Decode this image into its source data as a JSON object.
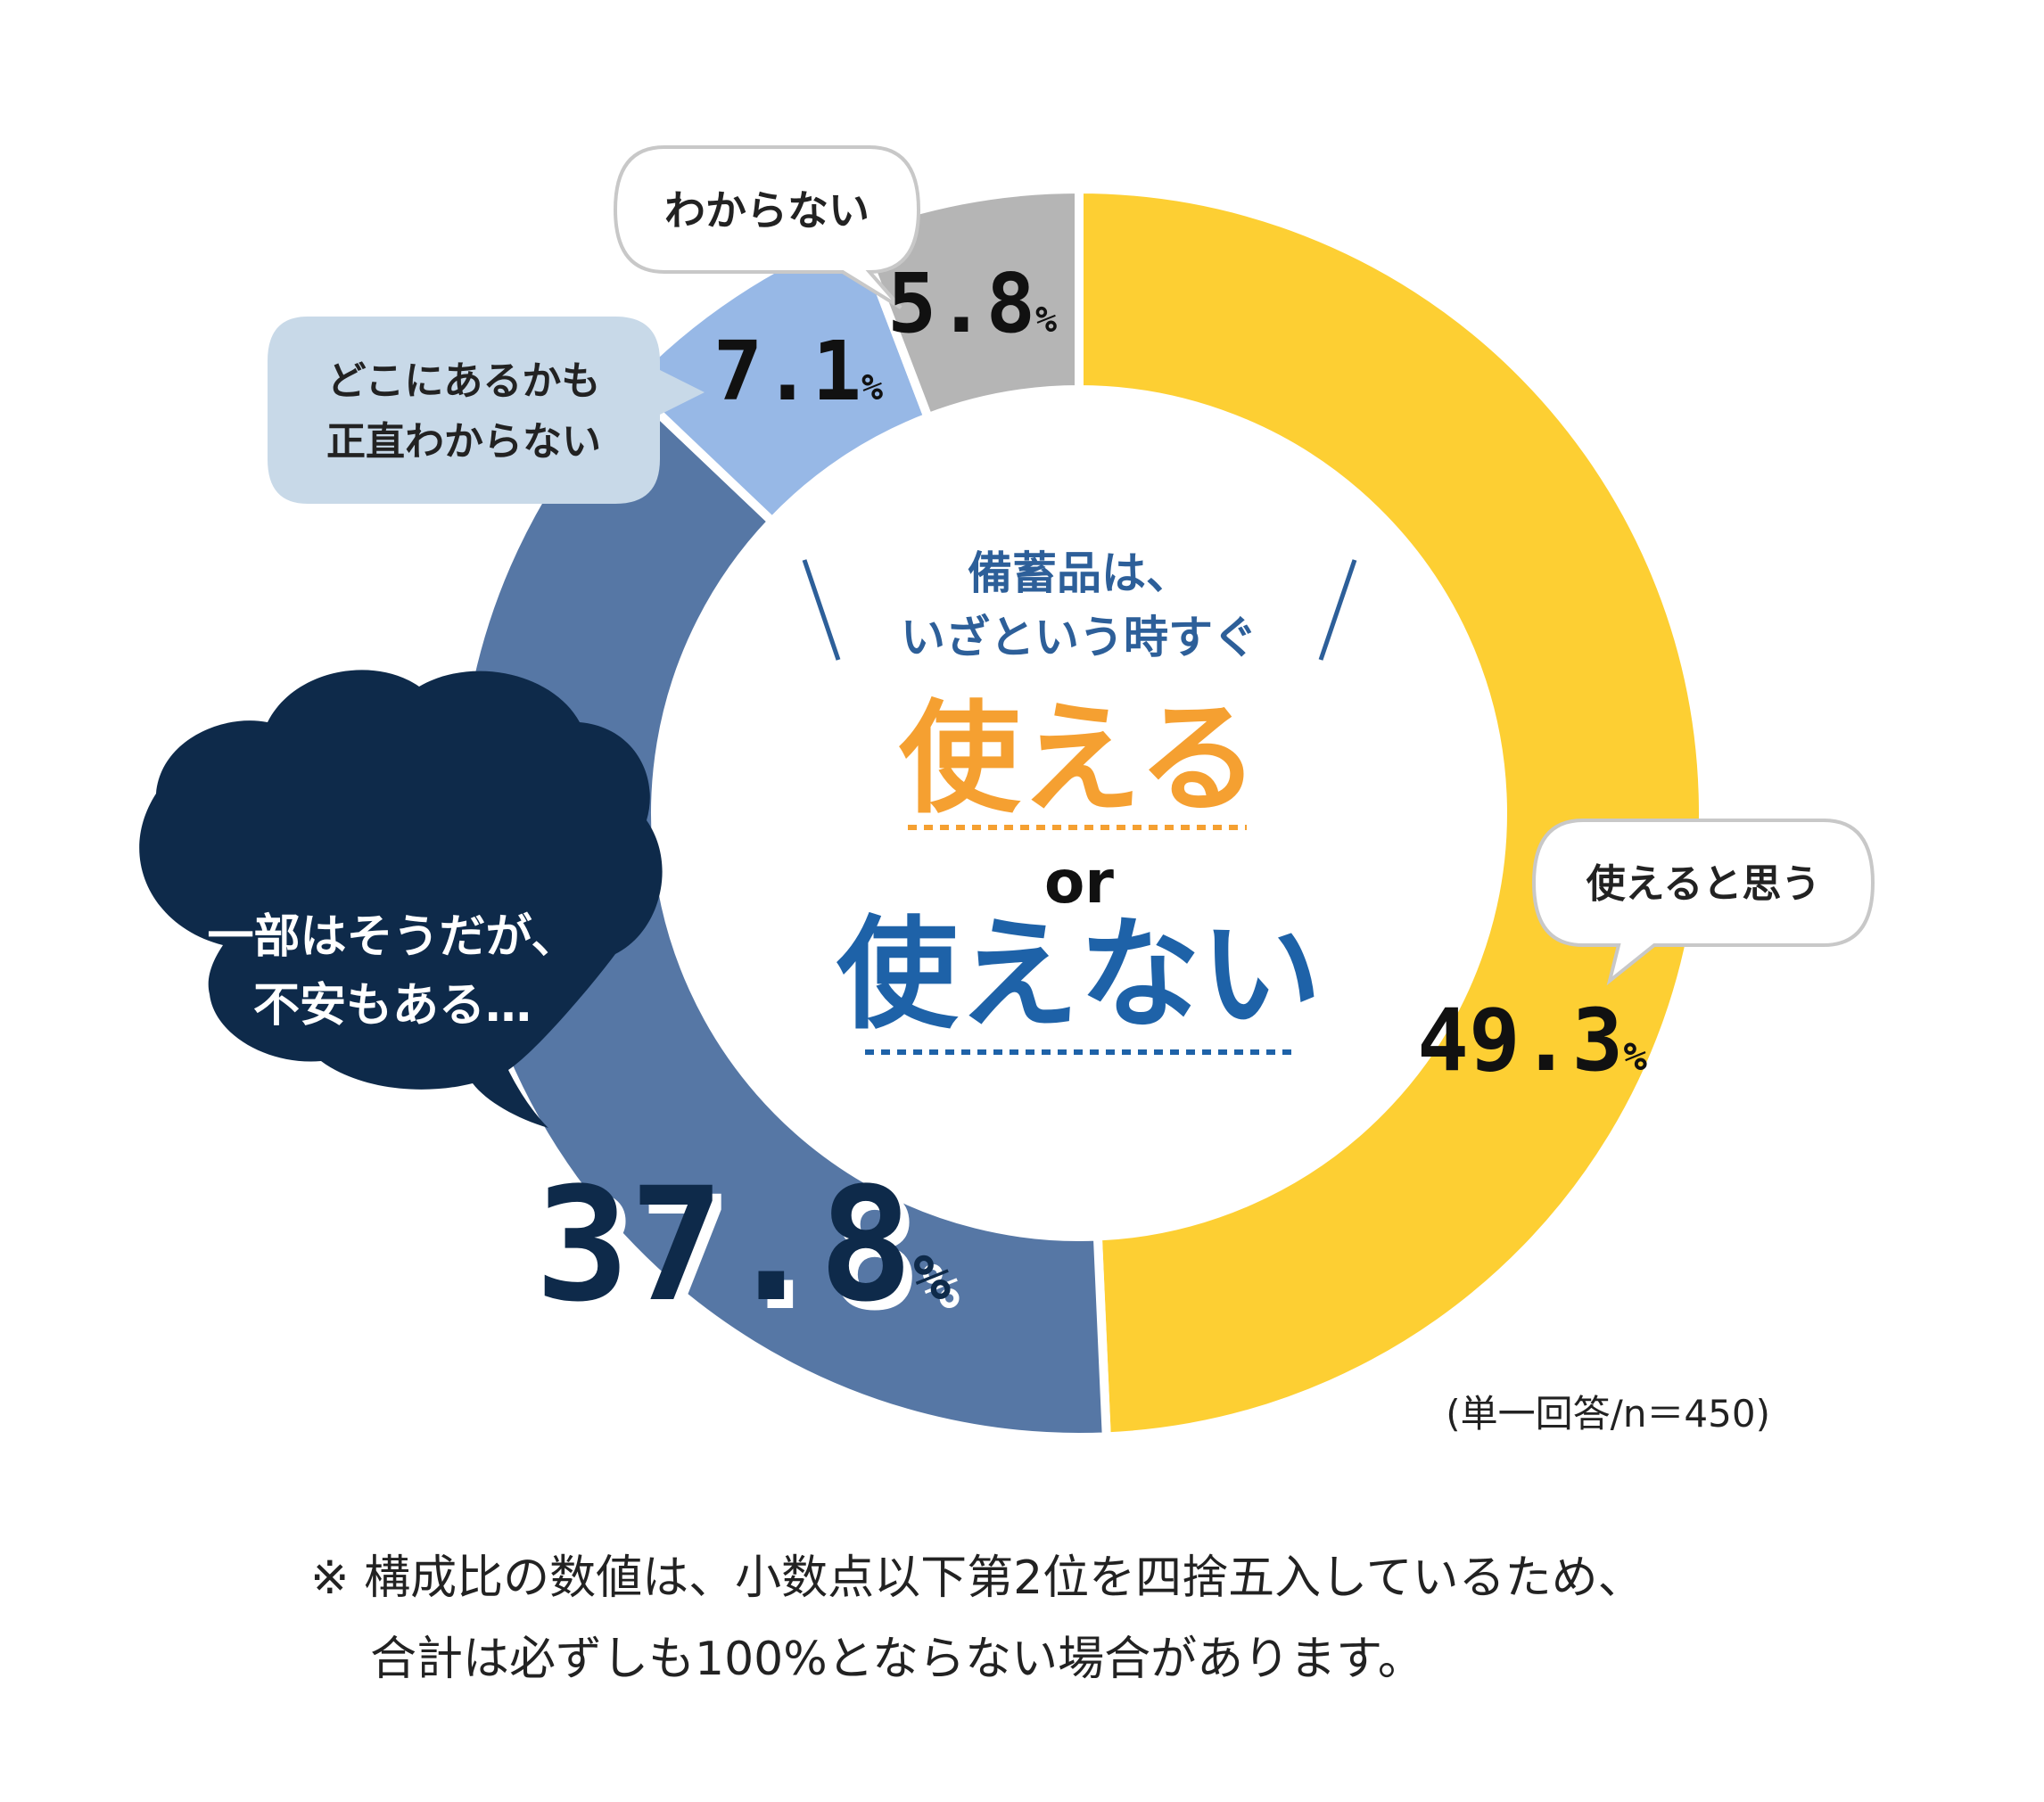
{
  "chart_data": {
    "type": "pie",
    "slices": [
      {
        "label": "使えると思う",
        "value": 49.3,
        "pct": "49.3",
        "color": "#FDCF33"
      },
      {
        "label": "一部はそうだが、不安もある…",
        "value": 37.8,
        "pct": "37.8",
        "color": "#5677A5"
      },
      {
        "label": "どこにあるかも正直わからない",
        "value": 7.1,
        "pct": "7.1",
        "color": "#97B8E6"
      },
      {
        "label": "わからない",
        "value": 5.8,
        "pct": "5.8",
        "color": "#B5B5B5"
      }
    ],
    "percent_sign": "%",
    "sample_note": "(単一回答/n＝450)"
  },
  "center": {
    "question_line1": "備蓄品は、",
    "question_line2": "いざという時すぐ",
    "word_yes": "使える",
    "word_or": "or",
    "word_no": "使えない"
  },
  "bubbles": {
    "wakaranai": "わからない",
    "doko_line1": "どこにあるかも",
    "doko_line2": "正直わからない",
    "ichibu_line1": "一部はそうだが、",
    "ichibu_line2": "不安もある…",
    "tsukaeru": "使えると思う"
  },
  "footnote": {
    "line1": "※ 構成比の数値は、小数点以下第2位を四捨五入しているため、",
    "line2": "合計は必ずしも100%とならない場合があります。"
  },
  "colors": {
    "yes": "#F5A031",
    "no": "#1E62A8",
    "question": "#2D5F99",
    "dark_bubble": "#0E2A4A",
    "light_bubble": "#C8D9E8",
    "pct_dark": "#0E2A4A"
  }
}
